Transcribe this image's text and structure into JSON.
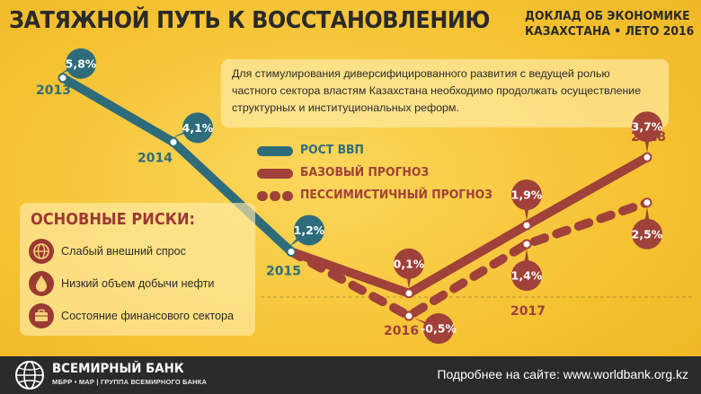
{
  "header": {
    "title": "ЗАТЯЖНОЙ ПУТЬ К ВОССТАНОВЛЕНИЮ",
    "report_line1": "ДОКЛАД ОБ ЭКОНОМИКЕ",
    "report_line2": "КАЗАХСТАНА • ЛЕТО 2016"
  },
  "info_text": "Для стимулирования диверсифицированного развития с ведущей ролью частного сектора властям Казахстана необходимо продолжать осуществление структурных и институциональных реформ.",
  "risks": {
    "title": "ОСНОВНЫЕ РИСКИ:",
    "items": [
      {
        "label": "Слабый внешний спрос",
        "icon": "globe-icon"
      },
      {
        "label": "Низкий объем добычи нефти",
        "icon": "oil-drop-icon"
      },
      {
        "label": "Состояние финансового сектора",
        "icon": "briefcase-icon"
      }
    ]
  },
  "footer": {
    "bank_name": "ВСЕМИРНЫЙ БАНК",
    "bank_sub": "МБРР • МАР | ГРУППА ВСЕМИРНОГО БАНКА",
    "site_text": "Подробнее на сайте: www.worldbank.org.kz"
  },
  "colors": {
    "background": "#f5c232",
    "gdp": "#2e6c7c",
    "baseline": "#a0413a",
    "pessimistic": "#a0413a",
    "text": "#2a2a2a"
  },
  "chart_data": {
    "type": "line",
    "x": [
      "2013",
      "2014",
      "2015",
      "2016",
      "2017",
      "2018"
    ],
    "series": [
      {
        "name": "РОСТ ВВП",
        "style": "solid",
        "color": "#2e6c7c",
        "points": [
          {
            "x": "2013",
            "y": 5.8,
            "label": "5,8%"
          },
          {
            "x": "2014",
            "y": 4.1,
            "label": "4,1%"
          },
          {
            "x": "2015",
            "y": 1.2,
            "label": "1,2%"
          }
        ]
      },
      {
        "name": "БАЗОВЫЙ ПРОГНОЗ",
        "style": "solid",
        "color": "#a0413a",
        "points": [
          {
            "x": "2016",
            "y": 0.1,
            "label": "0,1%"
          },
          {
            "x": "2017",
            "y": 1.9,
            "label": "1,9%"
          },
          {
            "x": "2018",
            "y": 3.7,
            "label": "3,7%"
          }
        ]
      },
      {
        "name": "ПЕССИМИСТИЧНЫЙ ПРОГНОЗ",
        "style": "dashed",
        "color": "#a0413a",
        "points": [
          {
            "x": "2016",
            "y": -0.5,
            "label": "-0,5%"
          },
          {
            "x": "2017",
            "y": 1.4,
            "label": "1,4%"
          },
          {
            "x": "2018",
            "y": 2.5,
            "label": "2,5%"
          }
        ]
      }
    ],
    "xlabel": "",
    "ylabel": "",
    "legend": "center",
    "grid": false
  }
}
